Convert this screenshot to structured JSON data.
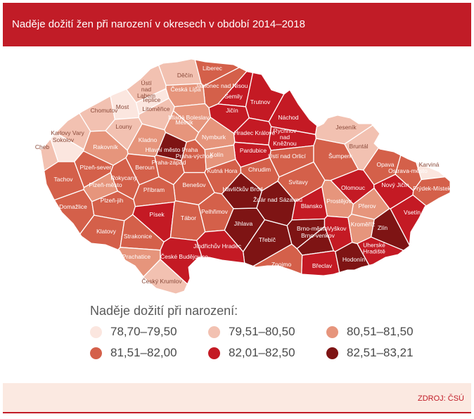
{
  "header": {
    "title": "Naděje dožití žen při narození v okresech v období 2014–2018"
  },
  "legend": {
    "title": "Naděje dožití při narození:",
    "items": [
      {
        "label": "78,70–79,50",
        "color": "#fbe6df"
      },
      {
        "label": "79,51–80,50",
        "color": "#f2c1b1"
      },
      {
        "label": "80,51–81,50",
        "color": "#e6957c"
      },
      {
        "label": "81,51–82,00",
        "color": "#d4604a"
      },
      {
        "label": "82,01–82,50",
        "color": "#c41a24"
      },
      {
        "label": "82,51–83,21",
        "color": "#7e1414"
      }
    ]
  },
  "districts": [
    {
      "name": "Děčín",
      "class": 1
    },
    {
      "name": "Liberec",
      "class": 3
    },
    {
      "name": "Jablonec nad Nisou",
      "class": 3
    },
    {
      "name": "Semily",
      "class": 4
    },
    {
      "name": "Trutnov",
      "class": 4
    },
    {
      "name": "Ústí nad Labem",
      "class": 1
    },
    {
      "name": "Teplice",
      "class": 0
    },
    {
      "name": "Česká Lípa",
      "class": 2
    },
    {
      "name": "Chomutov",
      "class": 1
    },
    {
      "name": "Most",
      "class": 0
    },
    {
      "name": "Litoměřice",
      "class": 1
    },
    {
      "name": "Mladá Boleslav",
      "class": 2
    },
    {
      "name": "Jičín",
      "class": 4
    },
    {
      "name": "Náchod",
      "class": 4
    },
    {
      "name": "Mělník",
      "class": 2
    },
    {
      "name": "Louny",
      "class": 1
    },
    {
      "name": "Hradec Králové",
      "class": 4
    },
    {
      "name": "Rychnov nad Kněžnou",
      "class": 4
    },
    {
      "name": "Jeseník",
      "class": 1
    },
    {
      "name": "Karlovy Vary",
      "class": 1
    },
    {
      "name": "Sokolov",
      "class": 0
    },
    {
      "name": "Cheb",
      "class": 1
    },
    {
      "name": "Nymburk",
      "class": 2
    },
    {
      "name": "Kladno",
      "class": 2
    },
    {
      "name": "Rakovník",
      "class": 2
    },
    {
      "name": "Bruntál",
      "class": 1
    },
    {
      "name": "Hlavní město Praha",
      "class": 5
    },
    {
      "name": "Praha-východ",
      "class": 3
    },
    {
      "name": "Pardubice",
      "class": 4
    },
    {
      "name": "Kolín",
      "class": 2
    },
    {
      "name": "Praha-západ",
      "class": 3
    },
    {
      "name": "Karviná",
      "class": 0
    },
    {
      "name": "Ústí nad Orlicí",
      "class": 3
    },
    {
      "name": "Šumperk",
      "class": 3
    },
    {
      "name": "Opava",
      "class": 3
    },
    {
      "name": "Ostrava-město",
      "class": 3
    },
    {
      "name": "Tachov",
      "class": 3
    },
    {
      "name": "Plzeň-sever",
      "class": 3
    },
    {
      "name": "Beroun",
      "class": 3
    },
    {
      "name": "Kutná Hora",
      "class": 3
    },
    {
      "name": "Chrudim",
      "class": 3
    },
    {
      "name": "Rokycany",
      "class": 3
    },
    {
      "name": "Plzeň-město",
      "class": 2
    },
    {
      "name": "Benešov",
      "class": 3
    },
    {
      "name": "Havlíčkův Brod",
      "class": 5
    },
    {
      "name": "Svitavy",
      "class": 3
    },
    {
      "name": "Olomouc",
      "class": 4
    },
    {
      "name": "Nový Jičín",
      "class": 4
    },
    {
      "name": "Frýdek-Místek",
      "class": 3
    },
    {
      "name": "Příbram",
      "class": 3
    },
    {
      "name": "Žďár nad Sázavou",
      "class": 5
    },
    {
      "name": "Domažlice",
      "class": 3
    },
    {
      "name": "Plzeň-jih",
      "class": 3
    },
    {
      "name": "Prostějov",
      "class": 2
    },
    {
      "name": "Blansko",
      "class": 4
    },
    {
      "name": "Přerov",
      "class": 2
    },
    {
      "name": "Vsetín",
      "class": 4
    },
    {
      "name": "Písek",
      "class": 4
    },
    {
      "name": "Tábor",
      "class": 3
    },
    {
      "name": "Pelhřimov",
      "class": 3
    },
    {
      "name": "Jihlava",
      "class": 5
    },
    {
      "name": "Brno-město",
      "class": 5
    },
    {
      "name": "Vyškov",
      "class": 4
    },
    {
      "name": "Kroměříž",
      "class": 2
    },
    {
      "name": "Zlín",
      "class": 5
    },
    {
      "name": "Klatovy",
      "class": 3
    },
    {
      "name": "Strakonice",
      "class": 3
    },
    {
      "name": "Brno-venkov",
      "class": 5
    },
    {
      "name": "Třebíč",
      "class": 5
    },
    {
      "name": "Jindřichův Hradec",
      "class": 4
    },
    {
      "name": "Uherské Hradiště",
      "class": 4
    },
    {
      "name": "Prachatice",
      "class": 2
    },
    {
      "name": "České Budějovice",
      "class": 4
    },
    {
      "name": "Břeclav",
      "class": 4
    },
    {
      "name": "Hodonín",
      "class": 5
    },
    {
      "name": "Znojmo",
      "class": 3
    },
    {
      "name": "Český Krumlov",
      "class": 1
    }
  ],
  "footer": {
    "source": "ZDROJ: ČSÚ"
  }
}
